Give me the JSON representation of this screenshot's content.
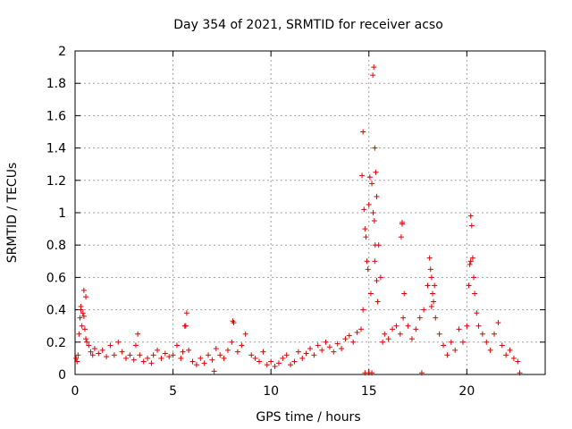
{
  "chart_data": {
    "type": "scatter",
    "title": "Day 354 of 2021, SRMTID for receiver acso",
    "xlabel": "GPS time / hours",
    "ylabel": "SRMTID / TECUs",
    "xlim": [
      0,
      24
    ],
    "ylim": [
      0,
      2
    ],
    "xticks": [
      0,
      5,
      10,
      15,
      20
    ],
    "yticks": [
      0,
      0.2,
      0.4,
      0.6,
      0.8,
      1,
      1.2,
      1.4,
      1.6,
      1.8,
      2
    ],
    "grid": true,
    "marker": "+",
    "colors": {
      "points": "#dd0000",
      "grid": "#a0a0a0",
      "axes": "#000000"
    },
    "series": [
      {
        "name": "SRMTID",
        "x": [
          0.05,
          0.1,
          0.15,
          0.2,
          0.25,
          0.3,
          0.35,
          0.4,
          0.45,
          0.5,
          0.55,
          0.6,
          0.7,
          0.8,
          0.9,
          1.0,
          1.2,
          1.4,
          1.6,
          1.8,
          2.0,
          2.2,
          2.4,
          2.6,
          2.8,
          3.0,
          3.1,
          3.2,
          3.3,
          3.5,
          3.7,
          3.9,
          4.0,
          4.2,
          4.4,
          4.6,
          4.8,
          5.0,
          5.2,
          5.4,
          5.5,
          5.6,
          5.7,
          5.8,
          6.0,
          6.2,
          6.4,
          6.6,
          6.8,
          7.0,
          7.2,
          7.4,
          7.6,
          7.8,
          8.0,
          8.1,
          8.3,
          8.5,
          8.7,
          9.0,
          9.2,
          9.4,
          9.6,
          9.8,
          10.0,
          10.2,
          10.4,
          10.6,
          10.8,
          11.0,
          11.2,
          11.4,
          11.6,
          11.8,
          12.0,
          12.2,
          12.4,
          12.6,
          12.8,
          13.0,
          13.2,
          13.4,
          13.6,
          13.8,
          14.0,
          14.2,
          14.4,
          14.6,
          14.7,
          14.8,
          14.9,
          15.0,
          15.1,
          15.2,
          15.25,
          15.3,
          15.35,
          15.4,
          15.5,
          15.6,
          15.7,
          15.8,
          16.0,
          16.2,
          16.4,
          16.6,
          16.7,
          16.8,
          17.0,
          17.2,
          17.4,
          17.6,
          17.8,
          18.0,
          18.1,
          18.2,
          18.3,
          18.4,
          18.6,
          18.8,
          19.0,
          19.2,
          19.4,
          19.6,
          19.8,
          20.0,
          20.1,
          20.2,
          20.3,
          20.4,
          20.5,
          20.6,
          20.8,
          21.0,
          21.2,
          21.4,
          21.6,
          21.8,
          22.0,
          22.2,
          22.4,
          22.6,
          0.3,
          0.45,
          0.55,
          5.65,
          8.05,
          14.65,
          14.75,
          14.85,
          14.95,
          15.05,
          15.15,
          15.22,
          15.28,
          15.32,
          15.45,
          16.65,
          16.75,
          18.15,
          18.25,
          18.35,
          20.15,
          20.25,
          20.35,
          14.7,
          15.3,
          15.4,
          16.7,
          18.2,
          20.2,
          7.1,
          14.8,
          15.0,
          15.15,
          17.7,
          22.7
        ],
        "y": [
          0.1,
          0.08,
          0.12,
          0.25,
          0.35,
          0.42,
          0.3,
          0.38,
          0.52,
          0.28,
          0.22,
          0.2,
          0.18,
          0.14,
          0.12,
          0.16,
          0.13,
          0.15,
          0.11,
          0.18,
          0.12,
          0.2,
          0.14,
          0.1,
          0.12,
          0.09,
          0.18,
          0.25,
          0.12,
          0.08,
          0.1,
          0.07,
          0.12,
          0.15,
          0.1,
          0.13,
          0.11,
          0.12,
          0.18,
          0.1,
          0.14,
          0.3,
          0.38,
          0.15,
          0.08,
          0.06,
          0.1,
          0.07,
          0.12,
          0.09,
          0.16,
          0.12,
          0.1,
          0.15,
          0.2,
          0.32,
          0.14,
          0.18,
          0.25,
          0.12,
          0.1,
          0.08,
          0.14,
          0.06,
          0.08,
          0.05,
          0.07,
          0.1,
          0.12,
          0.06,
          0.08,
          0.14,
          0.1,
          0.13,
          0.16,
          0.12,
          0.18,
          0.15,
          0.2,
          0.17,
          0.14,
          0.19,
          0.16,
          0.22,
          0.24,
          0.2,
          0.26,
          0.28,
          1.5,
          0.9,
          0.7,
          1.05,
          0.5,
          1.85,
          1.9,
          1.4,
          1.25,
          1.1,
          0.8,
          0.6,
          0.2,
          0.25,
          0.22,
          0.28,
          0.3,
          0.25,
          0.93,
          0.5,
          0.3,
          0.22,
          0.28,
          0.35,
          0.4,
          0.55,
          0.72,
          0.6,
          0.45,
          0.35,
          0.25,
          0.18,
          0.12,
          0.2,
          0.15,
          0.28,
          0.2,
          0.3,
          0.55,
          0.98,
          0.72,
          0.5,
          0.38,
          0.3,
          0.25,
          0.2,
          0.15,
          0.25,
          0.32,
          0.18,
          0.12,
          0.15,
          0.1,
          0.08,
          0.4,
          0.36,
          0.48,
          0.3,
          0.33,
          1.23,
          1.02,
          0.85,
          0.65,
          1.22,
          1.18,
          1.0,
          0.95,
          0.8,
          0.45,
          0.85,
          0.35,
          0.65,
          0.5,
          0.55,
          0.68,
          0.92,
          0.6,
          0.4,
          0.7,
          0.58,
          0.94,
          0.42,
          0.7,
          0.02,
          0.01,
          0.01,
          0.01,
          0.01,
          0.01
        ]
      }
    ]
  }
}
